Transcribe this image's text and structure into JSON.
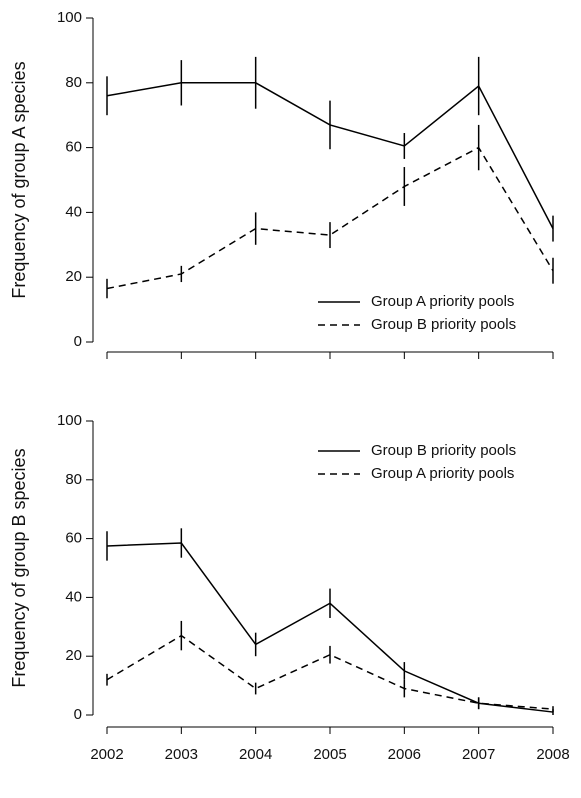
{
  "chart_data": [
    {
      "type": "line",
      "ylabel": "Frequency of group A species",
      "x": [
        2002,
        2003,
        2004,
        2005,
        2006,
        2007,
        2008
      ],
      "xlim": [
        2002,
        2008
      ],
      "xticks": [
        2002,
        2003,
        2004,
        2005,
        2006,
        2007,
        2008
      ],
      "show_xtick_labels": false,
      "ylim": [
        0,
        100
      ],
      "yticks": [
        0,
        20,
        40,
        60,
        80,
        100
      ],
      "legend": "lower right",
      "series": [
        {
          "name": "Group A priority pools",
          "color": "#000000",
          "dashed": false,
          "values": [
            76,
            80,
            80,
            67,
            60.5,
            79,
            35
          ],
          "errors": [
            6,
            7,
            8,
            7.5,
            4,
            9,
            4
          ]
        },
        {
          "name": "Group B priority pools",
          "color": "#000000",
          "dashed": true,
          "values": [
            16.5,
            21,
            35,
            33,
            48,
            60,
            22
          ],
          "errors": [
            3,
            2.5,
            5,
            4,
            6,
            7,
            4
          ]
        }
      ]
    },
    {
      "type": "line",
      "ylabel": "Frequency of group B species",
      "x": [
        2002,
        2003,
        2004,
        2005,
        2006,
        2007,
        2008
      ],
      "xlim": [
        2002,
        2008
      ],
      "xticks": [
        2002,
        2003,
        2004,
        2005,
        2006,
        2007,
        2008
      ],
      "show_xtick_labels": true,
      "ylim": [
        0,
        100
      ],
      "yticks": [
        0,
        20,
        40,
        60,
        80,
        100
      ],
      "legend": "upper right",
      "series": [
        {
          "name": "Group B priority pools",
          "color": "#000000",
          "dashed": false,
          "values": [
            57.5,
            58.5,
            24,
            38,
            15,
            4,
            1
          ],
          "errors": [
            5,
            5,
            4,
            5,
            3,
            2,
            1
          ]
        },
        {
          "name": "Group A priority pools",
          "color": "#000000",
          "dashed": true,
          "values": [
            12,
            27,
            9,
            20.5,
            9,
            4,
            2
          ],
          "errors": [
            2,
            5,
            2,
            3,
            3,
            2,
            1
          ]
        }
      ]
    }
  ]
}
